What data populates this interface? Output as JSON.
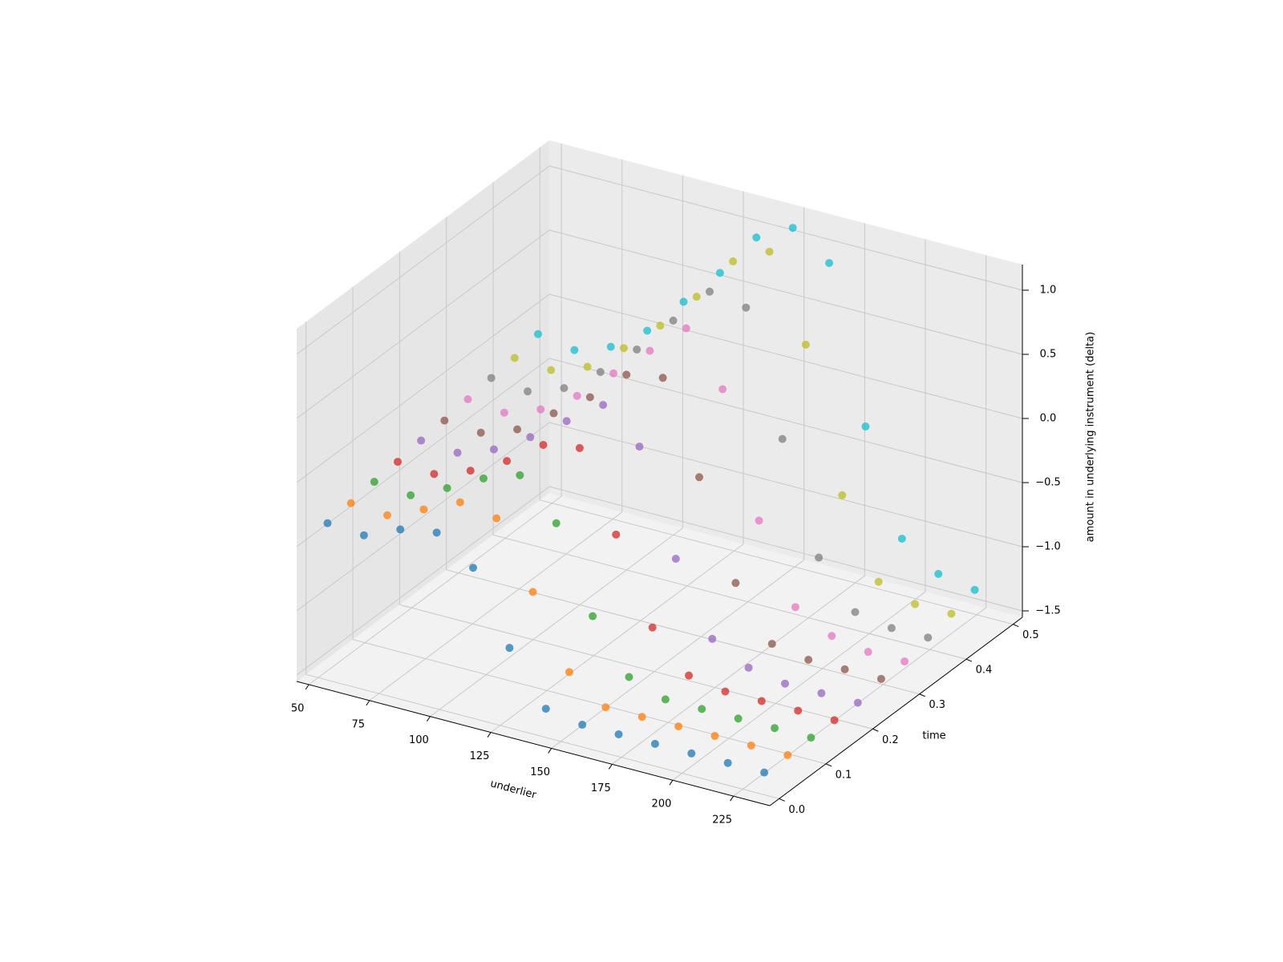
{
  "chart_data": {
    "type": "scatter3d",
    "xlabel": "underlier",
    "ylabel": "time",
    "zlabel": "amount in underlying instrument (delta)",
    "x": [
      50,
      65,
      80,
      95,
      110,
      125,
      140,
      155,
      170,
      185,
      200,
      215,
      230
    ],
    "xlim": [
      45,
      240
    ],
    "ylim": [
      -0.02,
      0.52
    ],
    "zlim": [
      -1.55,
      1.2
    ],
    "xticks": [
      50,
      75,
      100,
      125,
      150,
      175,
      200,
      225
    ],
    "yticks": [
      {
        "value": 0,
        "label": "0.0"
      },
      0.1,
      0.2,
      0.3,
      0.4,
      0.5
    ],
    "zticks": [
      {
        "value": -1.5,
        "label": "−1.5"
      },
      {
        "value": -1,
        "label": "−1.0"
      },
      {
        "value": -0.5,
        "label": "−0.5"
      },
      {
        "value": 0,
        "label": "0.0"
      },
      0.5,
      {
        "value": 1,
        "label": "1.0"
      }
    ],
    "grid": true,
    "series": [
      {
        "color": "#1f77b4",
        "time": 0.02,
        "values": [
          -0.4,
          -0.42,
          -0.3,
          -0.25,
          -0.45,
          -1.0,
          -1.4,
          -1.45,
          -1.45,
          -1.45,
          -1.45,
          -1.45,
          -1.45
        ]
      },
      {
        "color": "#ff7f0e",
        "time": 0.07,
        "values": [
          -0.38,
          -0.4,
          -0.28,
          -0.15,
          -0.2,
          -0.7,
          -1.25,
          -1.45,
          -1.45,
          -1.45,
          -1.45,
          -1.45,
          -1.45
        ]
      },
      {
        "color": "#2ca02c",
        "time": 0.12,
        "values": [
          -0.35,
          -0.38,
          -0.25,
          -0.1,
          0.0,
          -0.3,
          -0.95,
          -1.35,
          -1.45,
          -1.45,
          -1.45,
          -1.45,
          -1.45
        ]
      },
      {
        "color": "#d62728",
        "time": 0.17,
        "values": [
          -0.33,
          -0.35,
          -0.25,
          -0.1,
          0.1,
          0.15,
          -0.45,
          -1.1,
          -1.4,
          -1.45,
          -1.45,
          -1.45,
          -1.45
        ]
      },
      {
        "color": "#9467bd",
        "time": 0.22,
        "values": [
          -0.3,
          -0.32,
          -0.22,
          -0.05,
          0.15,
          0.35,
          0.1,
          -0.7,
          -1.25,
          -1.4,
          -1.45,
          -1.45,
          -1.45
        ]
      },
      {
        "color": "#8c564b",
        "time": 0.27,
        "values": [
          -0.28,
          -0.3,
          -0.2,
          0.0,
          0.2,
          0.45,
          0.5,
          -0.2,
          -0.95,
          -1.35,
          -1.4,
          -1.4,
          -1.4
        ]
      },
      {
        "color": "#e377c2",
        "time": 0.32,
        "values": [
          -0.25,
          -0.28,
          -0.18,
          0.0,
          0.25,
          0.5,
          0.75,
          0.35,
          -0.6,
          -1.2,
          -1.35,
          -1.4,
          -1.4
        ]
      },
      {
        "color": "#7f7f7f",
        "time": 0.37,
        "values": [
          -0.22,
          -0.25,
          -0.15,
          0.05,
          0.3,
          0.6,
          0.9,
          0.85,
          -0.1,
          -0.95,
          -1.3,
          -1.35,
          -1.35
        ]
      },
      {
        "color": "#bcbd22",
        "time": 0.42,
        "values": [
          -0.2,
          -0.22,
          -0.12,
          0.1,
          0.35,
          0.65,
          1.0,
          1.15,
          0.5,
          -0.6,
          -1.2,
          -1.3,
          -1.3
        ]
      },
      {
        "color": "#17becf",
        "time": 0.47,
        "values": [
          -0.15,
          -0.2,
          -0.1,
          0.1,
          0.4,
          0.7,
          1.05,
          1.2,
          1.0,
          -0.2,
          -1.0,
          -1.2,
          -1.25
        ]
      }
    ]
  }
}
